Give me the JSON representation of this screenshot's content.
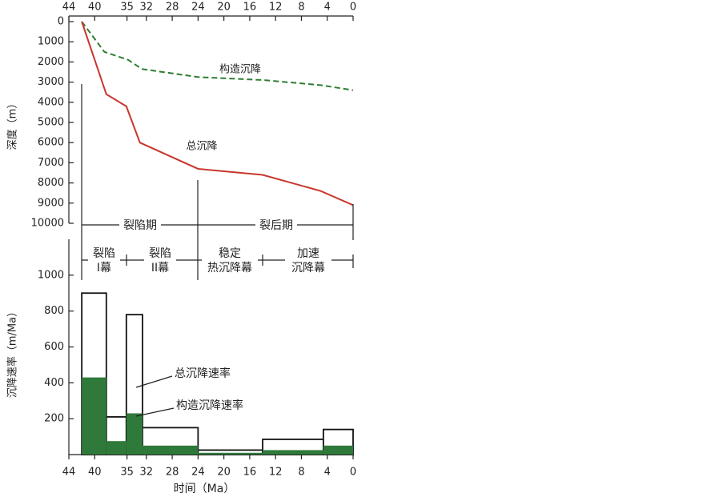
{
  "chart_data": [
    {
      "type": "line",
      "y_label": "深度（m）",
      "xlim": [
        44,
        0
      ],
      "xticks": [
        44,
        40,
        35,
        32,
        28,
        24,
        20,
        16,
        12,
        8,
        4,
        0
      ],
      "ylim": [
        0,
        10000
      ],
      "yticks": [
        0,
        1000,
        2000,
        3000,
        4000,
        5000,
        6000,
        7000,
        8000,
        9000,
        10000
      ],
      "series": [
        {
          "name": "构造沉降",
          "color": "#2e7d32",
          "dashed": true,
          "x": [
            42,
            38.5,
            34.8,
            32.7,
            24,
            13.8,
            5,
            0
          ],
          "values": [
            0,
            1500,
            1900,
            2350,
            2750,
            2900,
            3150,
            3400
          ]
        },
        {
          "name": "总沉降",
          "color": "#c8372d",
          "dashed": false,
          "x": [
            42,
            38.2,
            35.1,
            33,
            24,
            14,
            5,
            0
          ],
          "values": [
            0,
            3600,
            4200,
            6000,
            7300,
            7600,
            8400,
            9100
          ]
        }
      ],
      "periods": [
        "裂陷期",
        "裂后期"
      ],
      "phases": [
        [
          "裂陷",
          "I幕"
        ],
        [
          "裂陷",
          "II幕"
        ],
        [
          "稳定",
          "热沉降幕"
        ],
        [
          "加速",
          "沉降幕"
        ]
      ]
    },
    {
      "type": "histogram",
      "x_label": "时间（Ma）",
      "y_label": "沉降速率（m/Ma）",
      "xlim": [
        44,
        0
      ],
      "xticks": [
        44,
        40,
        35,
        32,
        28,
        24,
        20,
        16,
        12,
        8,
        4,
        0
      ],
      "ylim": [
        0,
        1200
      ],
      "yticks": [
        200,
        400,
        600,
        800,
        1000
      ],
      "bins": [
        42,
        38.2,
        35.1,
        32.6,
        24,
        14,
        4.6,
        0
      ],
      "series": [
        {
          "name": "总沉降速率",
          "color": "#ffffff",
          "values": [
            900,
            210,
            780,
            150,
            25,
            85,
            140
          ]
        },
        {
          "name": "构造沉降速率",
          "color": "#2f7a3a",
          "values": [
            430,
            75,
            230,
            50,
            10,
            25,
            50
          ]
        }
      ]
    }
  ]
}
